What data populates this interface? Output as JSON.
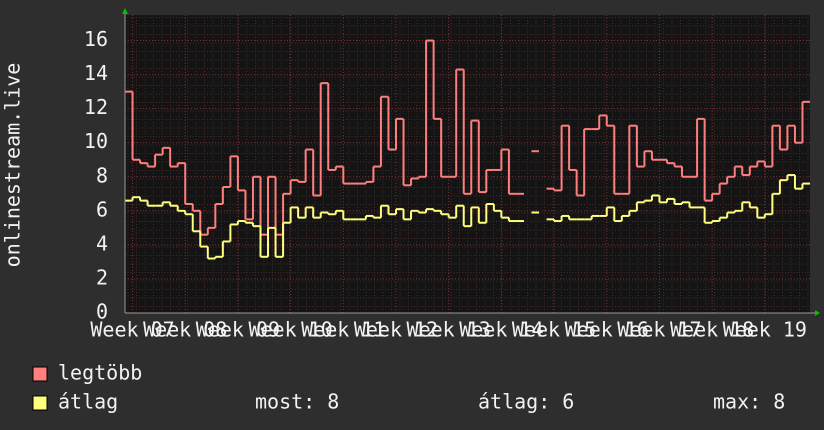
{
  "chart_data": {
    "type": "line",
    "y_label": "onlinestream.live",
    "x": [
      0,
      1,
      2,
      3,
      4,
      5,
      6,
      7,
      8,
      9,
      10,
      11,
      12,
      13,
      14,
      15,
      16,
      17,
      18,
      19,
      20,
      21,
      22,
      23,
      24,
      25,
      26,
      27,
      28,
      29,
      30,
      31,
      32,
      33,
      34,
      35,
      36,
      37,
      38,
      39,
      40,
      41,
      42,
      43,
      44,
      45,
      46,
      47,
      48,
      49,
      50,
      51,
      52,
      53,
      54,
      55,
      56,
      57,
      58,
      59,
      60,
      61,
      62,
      63,
      64,
      65,
      66,
      67,
      68,
      69,
      70,
      71,
      72,
      73,
      74,
      75,
      76,
      77,
      78,
      79,
      80,
      81,
      82,
      83,
      84,
      85,
      86,
      87,
      88,
      89,
      90
    ],
    "series": [
      {
        "name": "legtöbb",
        "color": "#ff7f7f",
        "values": [
          13,
          9,
          8.8,
          8.6,
          9.3,
          9.7,
          8.6,
          8.8,
          6.4,
          6.0,
          4.6,
          5.0,
          6.4,
          7.4,
          9.2,
          7.2,
          5.5,
          8.0,
          4.6,
          8.0,
          4.6,
          7.0,
          7.8,
          7.7,
          9.6,
          6.9,
          13.5,
          8.4,
          8.6,
          7.6,
          7.6,
          7.6,
          7.7,
          8.6,
          12.7,
          9.6,
          11.4,
          7.5,
          7.9,
          8.0,
          16,
          11.4,
          8.0,
          8.0,
          14.3,
          7.0,
          11.3,
          7.1,
          8.4,
          8.4,
          9.6,
          7.0,
          7.0,
          null,
          9.5,
          null,
          7.3,
          7.2,
          11,
          8.4,
          6.9,
          10.8,
          10.8,
          11.6,
          11.0,
          7.0,
          7.0,
          11.0,
          8.6,
          9.5,
          9.0,
          9.0,
          8.8,
          8.6,
          8.0,
          8.0,
          11.4,
          6.6,
          7.0,
          7.6,
          8.0,
          8.6,
          8.1,
          8.6,
          8.9,
          8.6,
          11,
          9.6,
          11,
          10,
          12.4
        ]
      },
      {
        "name": "átlag",
        "color": "#ffff7f",
        "values": [
          6.6,
          6.8,
          6.6,
          6.3,
          6.3,
          6.5,
          6.3,
          6.0,
          5.8,
          4.8,
          3.9,
          3.2,
          3.3,
          4.2,
          5.2,
          5.4,
          5.3,
          5.1,
          3.3,
          5.0,
          3.3,
          5.3,
          6.2,
          5.6,
          6.2,
          5.6,
          5.9,
          5.8,
          6.0,
          5.5,
          5.5,
          5.5,
          5.7,
          5.6,
          6.3,
          5.8,
          6.1,
          5.5,
          6.0,
          5.9,
          6.1,
          6.0,
          5.8,
          5.6,
          6.3,
          5.1,
          6.2,
          5.3,
          6.4,
          6.0,
          5.6,
          5.4,
          5.4,
          null,
          5.9,
          null,
          5.5,
          5.4,
          5.7,
          5.5,
          5.5,
          5.5,
          5.7,
          5.7,
          6.2,
          5.4,
          5.7,
          6.0,
          6.5,
          6.6,
          6.9,
          6.5,
          6.7,
          6.4,
          6.5,
          6.2,
          6.2,
          5.3,
          5.4,
          5.6,
          5.9,
          6.0,
          6.5,
          6.2,
          5.6,
          5.8,
          7.0,
          7.8,
          8.1,
          7.3,
          7.6
        ]
      }
    ],
    "legend_stats": [
      "most: 8",
      "átlag: 6",
      "max: 8"
    ],
    "xlim": [
      0,
      91
    ],
    "xticks": [
      {
        "value": 1,
        "label": "Week 07"
      },
      {
        "value": 8,
        "label": "Week 08"
      },
      {
        "value": 15,
        "label": "Week 09"
      },
      {
        "value": 22,
        "label": "Week 10"
      },
      {
        "value": 29,
        "label": "Week 11"
      },
      {
        "value": 36,
        "label": "Week 12"
      },
      {
        "value": 43,
        "label": "Week 13"
      },
      {
        "value": 50,
        "label": "Week 14"
      },
      {
        "value": 57,
        "label": "Week 15"
      },
      {
        "value": 64,
        "label": "Week 16"
      },
      {
        "value": 71,
        "label": "Week 17"
      },
      {
        "value": 78,
        "label": "Week 18"
      },
      {
        "value": 85,
        "label": "Week 19"
      }
    ],
    "ylim": [
      0,
      17.5
    ],
    "yticks": [
      0,
      2,
      4,
      6,
      8,
      10,
      12,
      14,
      16
    ],
    "grid": true
  }
}
